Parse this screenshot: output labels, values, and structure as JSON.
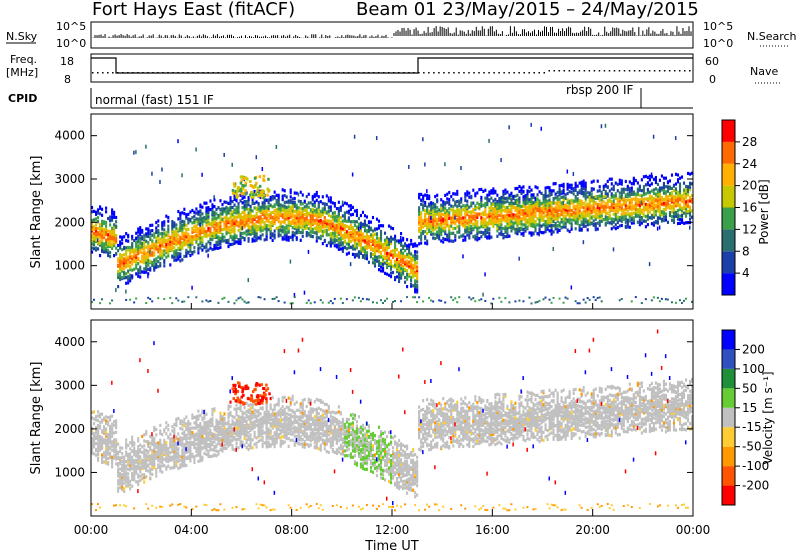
{
  "header": {
    "title_left": "Fort Hays East (fitACF)",
    "title_right": "Beam 01 23/May/2015 – 24/May/2015"
  },
  "noise_panel": {
    "left_label": "N.Sky",
    "right_label": "N.Search",
    "left_ticks": [
      "10^5",
      "10^0"
    ],
    "right_ticks": [
      "10^5",
      "10^0"
    ]
  },
  "freq_panel": {
    "left_label_top": "Freq.",
    "left_label_bottom": "[MHz]",
    "right_label": "Nave",
    "left_ticks": [
      "18",
      "8"
    ],
    "right_ticks": [
      "60",
      "0"
    ],
    "cpid_label": "CPID",
    "cpid_segments": [
      "normal (fast) 151 IF",
      "rbsp 200 IF"
    ]
  },
  "chart_data": [
    {
      "type": "heatmap",
      "name": "power",
      "ylabel": "Slant Range [km]",
      "yticks": [
        "1000",
        "2000",
        "3000",
        "4000"
      ],
      "ylim": [
        0,
        4500
      ],
      "colorbar": {
        "label": "Power [dB]",
        "ticks": [
          "4",
          "8",
          "12",
          "16",
          "20",
          "24",
          "28"
        ]
      }
    },
    {
      "type": "heatmap",
      "name": "velocity",
      "ylabel": "Slant Range [km]",
      "yticks": [
        "1000",
        "2000",
        "3000",
        "4000"
      ],
      "ylim": [
        0,
        4500
      ],
      "colorbar": {
        "label": "Velocity [m s⁻¹]",
        "ticks": [
          "200",
          "100",
          "50",
          "15",
          "-15",
          "-50",
          "-100",
          "-200"
        ]
      }
    }
  ],
  "xaxis": {
    "label": "Time UT",
    "ticks": [
      "00:00",
      "04:00",
      "08:00",
      "12:00",
      "16:00",
      "20:00",
      "00:00"
    ]
  },
  "colors": {
    "power": [
      "#0000ff",
      "#1b3fa8",
      "#2a6f6f",
      "#3aa14a",
      "#c8c800",
      "#ffb000",
      "#ff6a00",
      "#ff0000"
    ],
    "velocity_pos": [
      "#0000ff",
      "#3050c0",
      "#1f8f3a",
      "#66cc33"
    ],
    "velocity_neg": [
      "#ffcc33",
      "#ff9900",
      "#ff5500",
      "#ff0000"
    ],
    "gray": "#c0c0c0"
  }
}
